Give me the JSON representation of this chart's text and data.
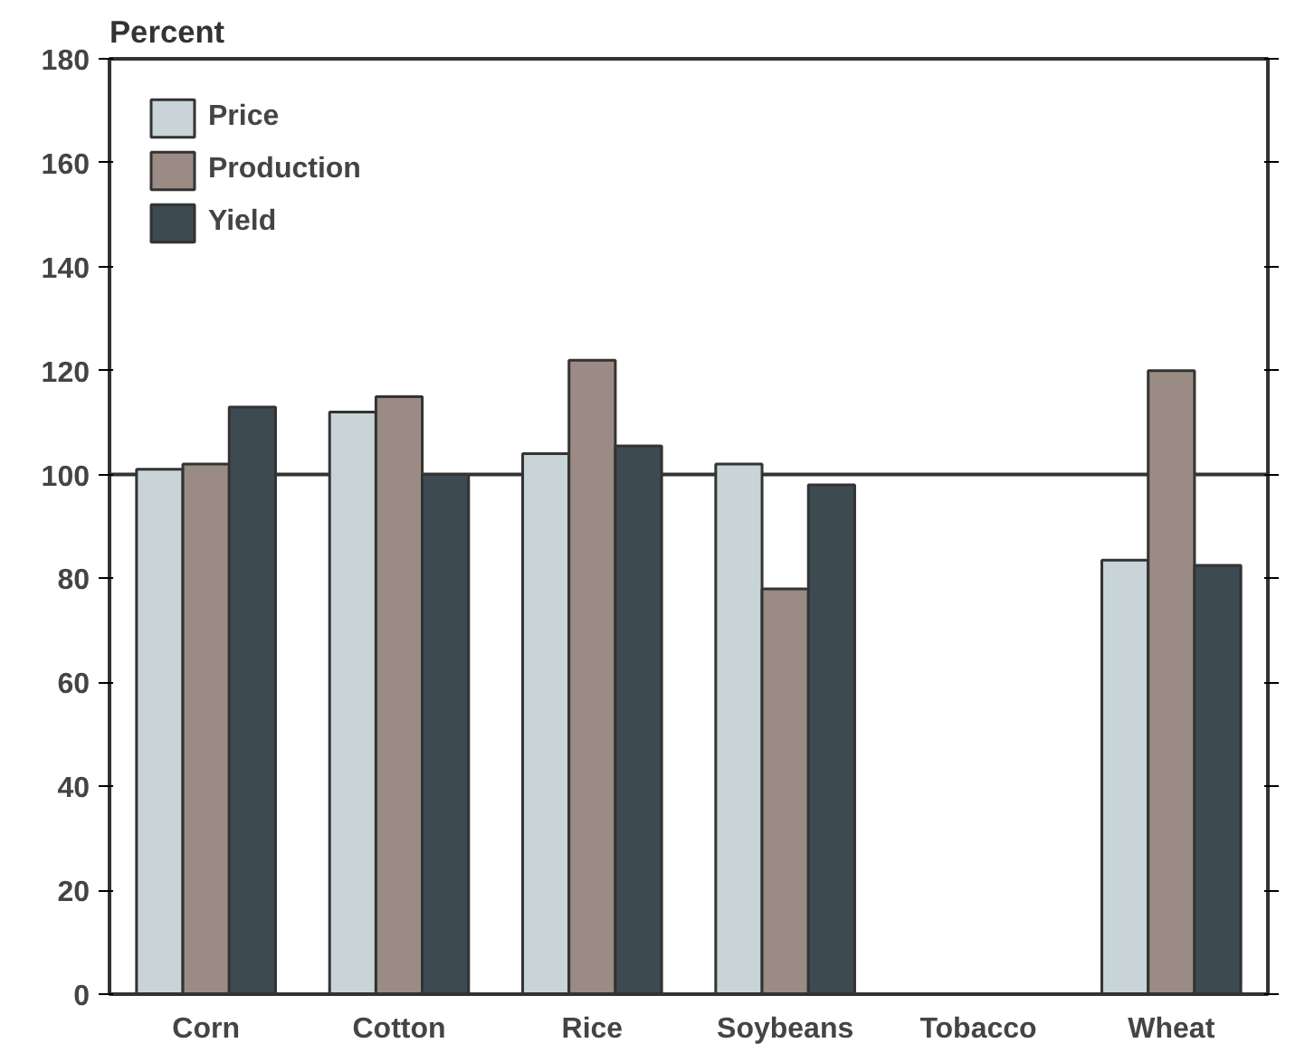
{
  "chart_data": {
    "type": "bar",
    "ylabel": "Percent",
    "categories": [
      "Corn",
      "Cotton",
      "Rice",
      "Soybeans",
      "Tobacco",
      "Wheat"
    ],
    "series": [
      {
        "name": "Price",
        "color": "#c8d4d8",
        "values": [
          101,
          112,
          104,
          102,
          null,
          83.5
        ]
      },
      {
        "name": "Production",
        "color": "#9a8c84",
        "values": [
          102,
          115,
          122,
          78,
          null,
          120
        ]
      },
      {
        "name": "Yield",
        "color": "#3e4a52",
        "values": [
          113,
          100,
          105.5,
          98,
          null,
          82.5
        ]
      }
    ],
    "ylim": [
      0,
      180
    ],
    "yticks": [
      0,
      20,
      40,
      60,
      80,
      100,
      120,
      140,
      160,
      180
    ],
    "ref_lines": [
      {
        "axis": "y",
        "value": 100,
        "color": "#333333"
      }
    ],
    "legend": "top left",
    "grid": false
  }
}
